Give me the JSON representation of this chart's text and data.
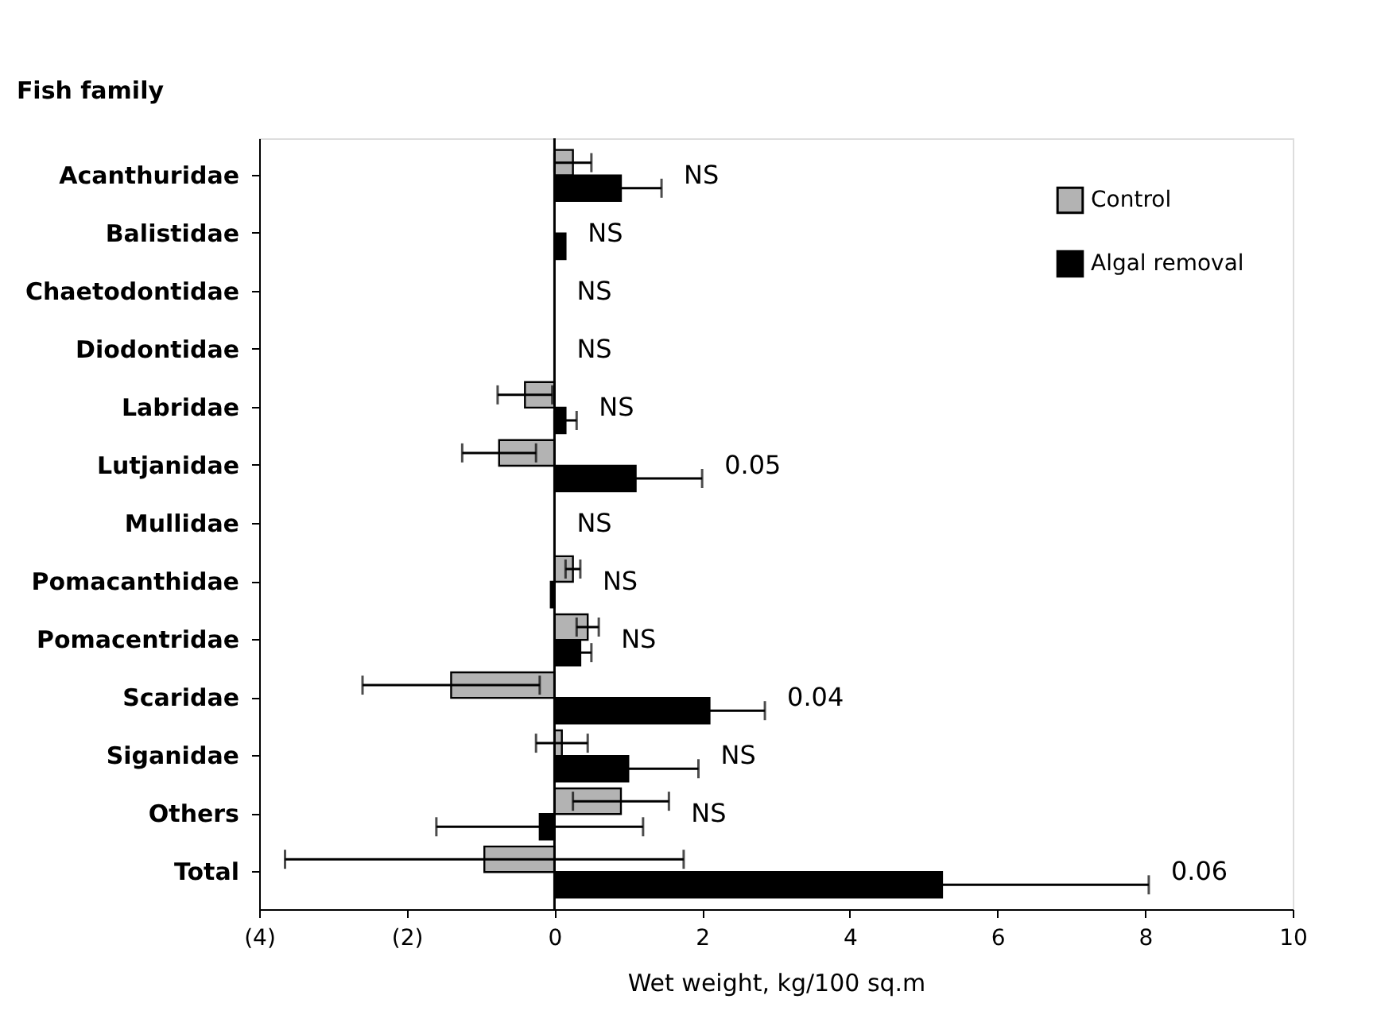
{
  "chart_data": {
    "type": "bar",
    "orientation": "horizontal",
    "ylabel": "Fish family",
    "xlabel": "Wet weight, kg/100 sq.m",
    "categories": [
      "Acanthuridae",
      "Balistidae",
      "Chaetodontidae",
      "Diodontidae",
      "Labridae",
      "Lutjanidae",
      "Mullidae",
      "Pomacanthidae",
      "Pomacentridae",
      "Scaridae",
      "Siganidae",
      "Others",
      "Total"
    ],
    "series": [
      {
        "name": "Control",
        "color": "#b3b3b3",
        "values": [
          0.25,
          null,
          null,
          null,
          -0.4,
          -0.75,
          null,
          0.25,
          0.45,
          -1.4,
          0.1,
          0.9,
          -0.95
        ],
        "errors": [
          0.25,
          null,
          null,
          null,
          0.37,
          0.5,
          null,
          0.1,
          0.15,
          1.2,
          0.35,
          0.65,
          2.7
        ]
      },
      {
        "name": "Algal removal",
        "color": "#000000",
        "values": [
          0.9,
          0.15,
          null,
          null,
          0.15,
          1.1,
          null,
          -0.05,
          0.35,
          2.1,
          1.0,
          -0.2,
          5.25
        ],
        "errors": [
          0.55,
          null,
          null,
          null,
          0.15,
          0.9,
          null,
          null,
          0.15,
          0.75,
          0.95,
          1.4,
          2.8
        ]
      }
    ],
    "xlim": [
      -4,
      10
    ],
    "xticks": [
      {
        "value": -4,
        "label": "(4)"
      },
      {
        "value": -2,
        "label": "(2)"
      },
      0,
      2,
      4,
      6,
      8,
      10
    ],
    "legend": "top right",
    "annotations": [
      "NS",
      "NS",
      "NS",
      "NS",
      "NS",
      "0.05",
      "NS",
      "NS",
      "NS",
      "0.04",
      "NS",
      "NS",
      "0.06"
    ]
  }
}
